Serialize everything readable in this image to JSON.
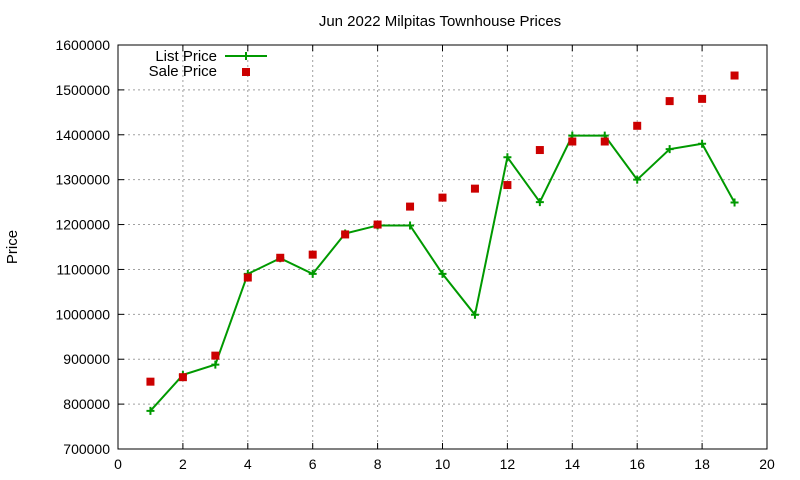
{
  "chart_data": {
    "type": "line",
    "title": "Jun 2022 Milpitas Townhouse Prices",
    "xlabel": "",
    "ylabel": "Price",
    "xlim": [
      0,
      20
    ],
    "ylim": [
      700000,
      1600000
    ],
    "x_ticks": [
      0,
      2,
      4,
      6,
      8,
      10,
      12,
      14,
      16,
      18,
      20
    ],
    "y_ticks": [
      700000,
      800000,
      900000,
      1000000,
      1100000,
      1200000,
      1300000,
      1400000,
      1500000,
      1600000
    ],
    "grid": true,
    "legend_position": "top-left",
    "series": [
      {
        "name": "List Price",
        "style": "line-with-plus-markers",
        "color": "#009900",
        "x": [
          1,
          2,
          3,
          4,
          5,
          6,
          7,
          8,
          9,
          10,
          11,
          12,
          13,
          14,
          15,
          16,
          17,
          18,
          19
        ],
        "y": [
          785000,
          865000,
          888000,
          1090000,
          1125000,
          1090000,
          1180000,
          1198000,
          1198000,
          1090000,
          999000,
          1350000,
          1250000,
          1398000,
          1398000,
          1300000,
          1368000,
          1380000,
          1249000
        ]
      },
      {
        "name": "Sale Price",
        "style": "square-markers",
        "color": "#cc0000",
        "x": [
          1,
          2,
          3,
          4,
          5,
          6,
          7,
          8,
          9,
          10,
          11,
          12,
          13,
          14,
          15,
          16,
          17,
          18,
          19
        ],
        "y": [
          850000,
          860000,
          908000,
          1082000,
          1126000,
          1133000,
          1178000,
          1200000,
          1240000,
          1260000,
          1280000,
          1288000,
          1366000,
          1385000,
          1385000,
          1420000,
          1475000,
          1480000,
          1532000
        ]
      }
    ]
  }
}
